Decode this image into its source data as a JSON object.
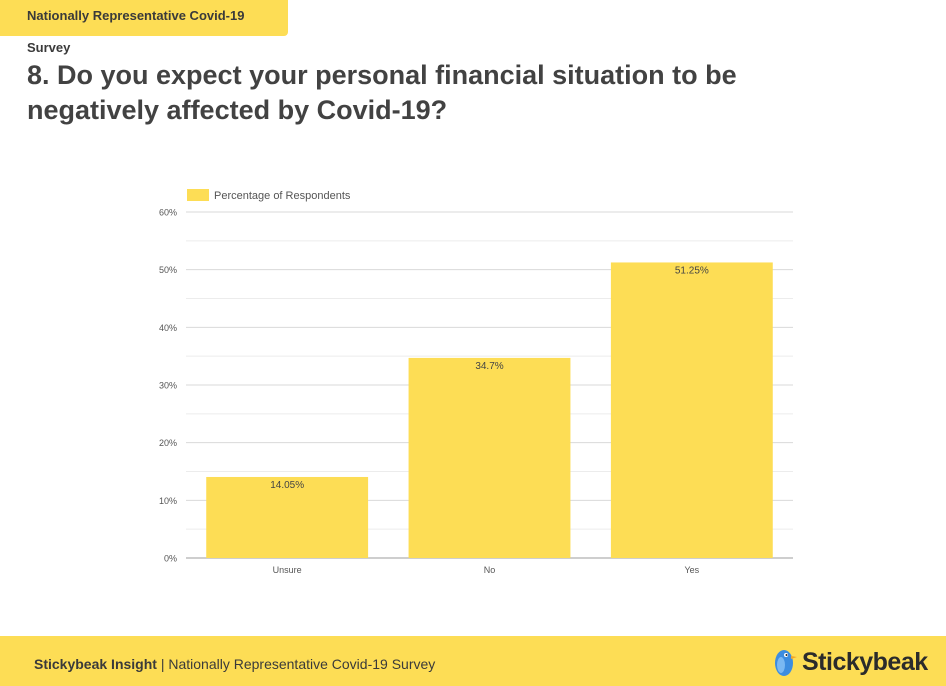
{
  "header": {
    "tag": "Nationally Representative Covid-19 Survey",
    "title_line1": "8. Do you expect your personal financial situation to be",
    "title_line2": "negatively affected by Covid-19?"
  },
  "chart_data": {
    "type": "bar",
    "categories": [
      "Unsure",
      "No",
      "Yes"
    ],
    "series": [
      {
        "name": "Percentage of Respondents",
        "values": [
          14.05,
          34.7,
          51.25
        ],
        "labels": [
          "14.05%",
          "34.7%",
          "51.25%"
        ],
        "color": "#fddd55"
      }
    ],
    "ylim": [
      0,
      60
    ],
    "yticks": [
      0,
      10,
      20,
      30,
      40,
      50,
      60
    ],
    "ytick_labels": [
      "0%",
      "10%",
      "20%",
      "30%",
      "40%",
      "50%",
      "60%"
    ],
    "minor_gridlines": [
      5,
      15,
      25,
      35,
      45,
      55
    ],
    "grid": true,
    "legend_position": "top-left",
    "xlabel": "",
    "ylabel": ""
  },
  "footer": {
    "brand_bold": "Stickybeak Insight",
    "separator": " | ",
    "subtitle": "Nationally Representative Covid-19 Survey",
    "logo_name": "bird-logo-icon",
    "brand_name": "Stickybeak"
  },
  "colors": {
    "accent": "#fddd55",
    "text": "#424242"
  }
}
